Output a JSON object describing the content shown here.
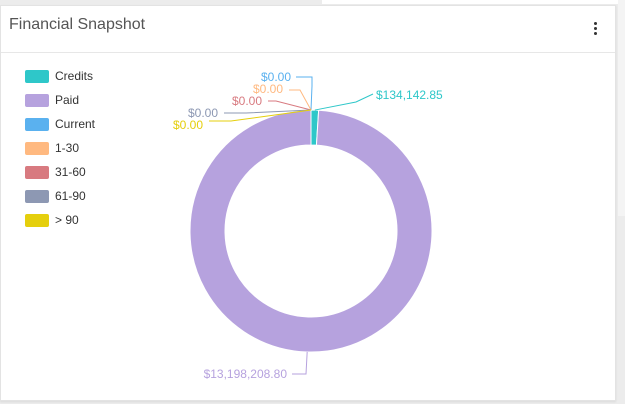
{
  "card": {
    "title": "Financial Snapshot"
  },
  "menu_icon": "vertical-ellipsis-icon",
  "chart_data": {
    "type": "pie",
    "donut": true,
    "legend_position": "left",
    "categories": [
      "Credits",
      "Paid",
      "Current",
      "1-30",
      "31-60",
      "61-90",
      "> 90"
    ],
    "values": [
      134142.85,
      13198208.8,
      0.0,
      0.0,
      0.0,
      0.0,
      0.0
    ],
    "labels": [
      "$134,142.85",
      "$13,198,208.80",
      "$0.00",
      "$0.00",
      "$0.00",
      "$0.00",
      "$0.00"
    ],
    "colors": [
      "#2ec7c9",
      "#b6a2de",
      "#5ab1ef",
      "#ffb980",
      "#d87a80",
      "#8d98b3",
      "#e5cf0d"
    ]
  }
}
